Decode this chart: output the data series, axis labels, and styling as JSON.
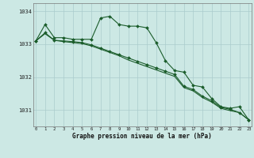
{
  "hours": [
    0,
    1,
    2,
    3,
    4,
    5,
    6,
    7,
    8,
    9,
    10,
    11,
    12,
    13,
    14,
    15,
    16,
    17,
    18,
    19,
    20,
    21,
    22,
    23
  ],
  "line1": [
    1033.1,
    1033.6,
    1033.2,
    1033.2,
    1033.15,
    1033.15,
    1033.15,
    1033.8,
    1033.85,
    1033.6,
    1033.55,
    1033.55,
    1033.5,
    1033.05,
    1032.5,
    1032.2,
    1032.15,
    1031.75,
    1031.7,
    1031.35,
    1031.1,
    1031.05,
    1031.1,
    1030.7
  ],
  "line2": [
    1033.1,
    1033.35,
    1033.12,
    1033.1,
    1033.08,
    1033.05,
    1032.98,
    1032.88,
    1032.78,
    1032.68,
    1032.58,
    1032.48,
    1032.38,
    1032.28,
    1032.18,
    1032.08,
    1031.72,
    1031.62,
    1031.42,
    1031.28,
    1031.08,
    1031.02,
    1030.92,
    1030.7
  ],
  "line3": [
    1033.1,
    1033.32,
    1033.12,
    1033.08,
    1033.05,
    1033.02,
    1032.95,
    1032.85,
    1032.75,
    1032.65,
    1032.52,
    1032.42,
    1032.32,
    1032.22,
    1032.12,
    1032.02,
    1031.68,
    1031.58,
    1031.38,
    1031.24,
    1031.05,
    1030.98,
    1030.92,
    1030.7
  ],
  "bg_color": "#cce8e4",
  "grid_color": "#aacccc",
  "line_color": "#1a5c2a",
  "marker_color": "#1a5c2a",
  "xlabel": "Graphe pression niveau de la mer (hPa)",
  "ylim": [
    1030.5,
    1034.25
  ],
  "yticks": [
    1031,
    1032,
    1033,
    1034
  ],
  "xlim": [
    -0.3,
    23.3
  ]
}
